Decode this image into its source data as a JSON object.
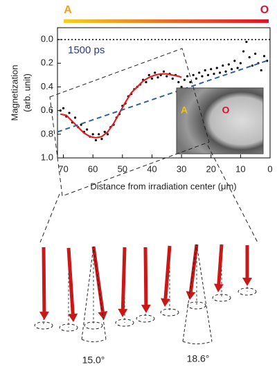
{
  "chart_data": {
    "type": "scatter",
    "gradient_start": "A",
    "gradient_end": "O",
    "annotations": [
      "1500 ps",
      "A",
      "O",
      "15.0°",
      "18.6°"
    ],
    "xlabel": "Distance from irradiation center (μm)",
    "ylabel": [
      "Magnetization",
      "(arb. unit)"
    ],
    "xlim": [
      72,
      0
    ],
    "ylim": [
      1.0,
      -0.1
    ],
    "xticks": [
      70,
      60,
      50,
      40,
      30,
      20,
      10,
      0
    ],
    "yticks": [
      {
        "value": 0,
        "label": "0.0"
      },
      0.2,
      0.4,
      0.6,
      0.8,
      {
        "value": 1,
        "label": "1.0"
      }
    ],
    "hline": 0,
    "series": [
      {
        "kind": "points",
        "color": "#000000",
        "x": [
          71,
          70,
          69,
          68,
          67,
          66,
          65,
          64,
          63,
          62,
          61,
          60,
          59,
          58,
          57,
          56,
          55,
          54,
          53,
          52,
          51,
          50,
          49,
          48,
          47,
          46,
          45,
          44,
          43,
          42,
          41,
          40,
          39,
          38,
          37,
          36,
          35,
          34,
          33,
          32,
          31,
          30,
          29,
          28,
          27,
          26,
          25,
          24,
          23,
          22,
          21,
          20,
          19,
          18,
          17,
          16,
          15,
          14,
          13,
          12,
          11,
          10,
          9,
          8,
          7,
          6,
          5,
          4,
          3,
          2,
          1
        ],
        "values": [
          0.6,
          0.58,
          0.65,
          0.62,
          0.7,
          0.66,
          0.74,
          0.72,
          0.78,
          0.76,
          0.82,
          0.8,
          0.85,
          0.8,
          0.84,
          0.78,
          0.8,
          0.74,
          0.72,
          0.66,
          0.63,
          0.56,
          0.54,
          0.48,
          0.46,
          0.42,
          0.4,
          0.38,
          0.34,
          0.36,
          0.3,
          0.33,
          0.28,
          0.32,
          0.3,
          0.27,
          0.31,
          0.29,
          0.33,
          0.3,
          0.36,
          0.4,
          0.34,
          0.31,
          0.36,
          0.3,
          0.33,
          0.28,
          0.31,
          0.26,
          0.3,
          0.25,
          0.29,
          0.24,
          0.28,
          0.22,
          0.27,
          0.21,
          0.25,
          0.18,
          0.24,
          0.2,
          0.1,
          0.02,
          0.15,
          0.22,
          0.12,
          0.2,
          0.26,
          0.14,
          0.18
        ]
      },
      {
        "kind": "fit",
        "color": "#e02020",
        "x": [
          71,
          69,
          67,
          65,
          63,
          61,
          59,
          57,
          55,
          53,
          51,
          49,
          47,
          45,
          43,
          41,
          39,
          37,
          35,
          33,
          31,
          30
        ],
        "values": [
          0.63,
          0.64,
          0.69,
          0.74,
          0.79,
          0.82,
          0.83,
          0.82,
          0.78,
          0.71,
          0.62,
          0.53,
          0.45,
          0.4,
          0.35,
          0.32,
          0.3,
          0.29,
          0.29,
          0.3,
          0.31,
          0.32
        ]
      },
      {
        "kind": "trend",
        "color": "#2b5fa8",
        "x": [
          72,
          0
        ],
        "values": [
          0.78,
          0.17
        ]
      }
    ]
  }
}
